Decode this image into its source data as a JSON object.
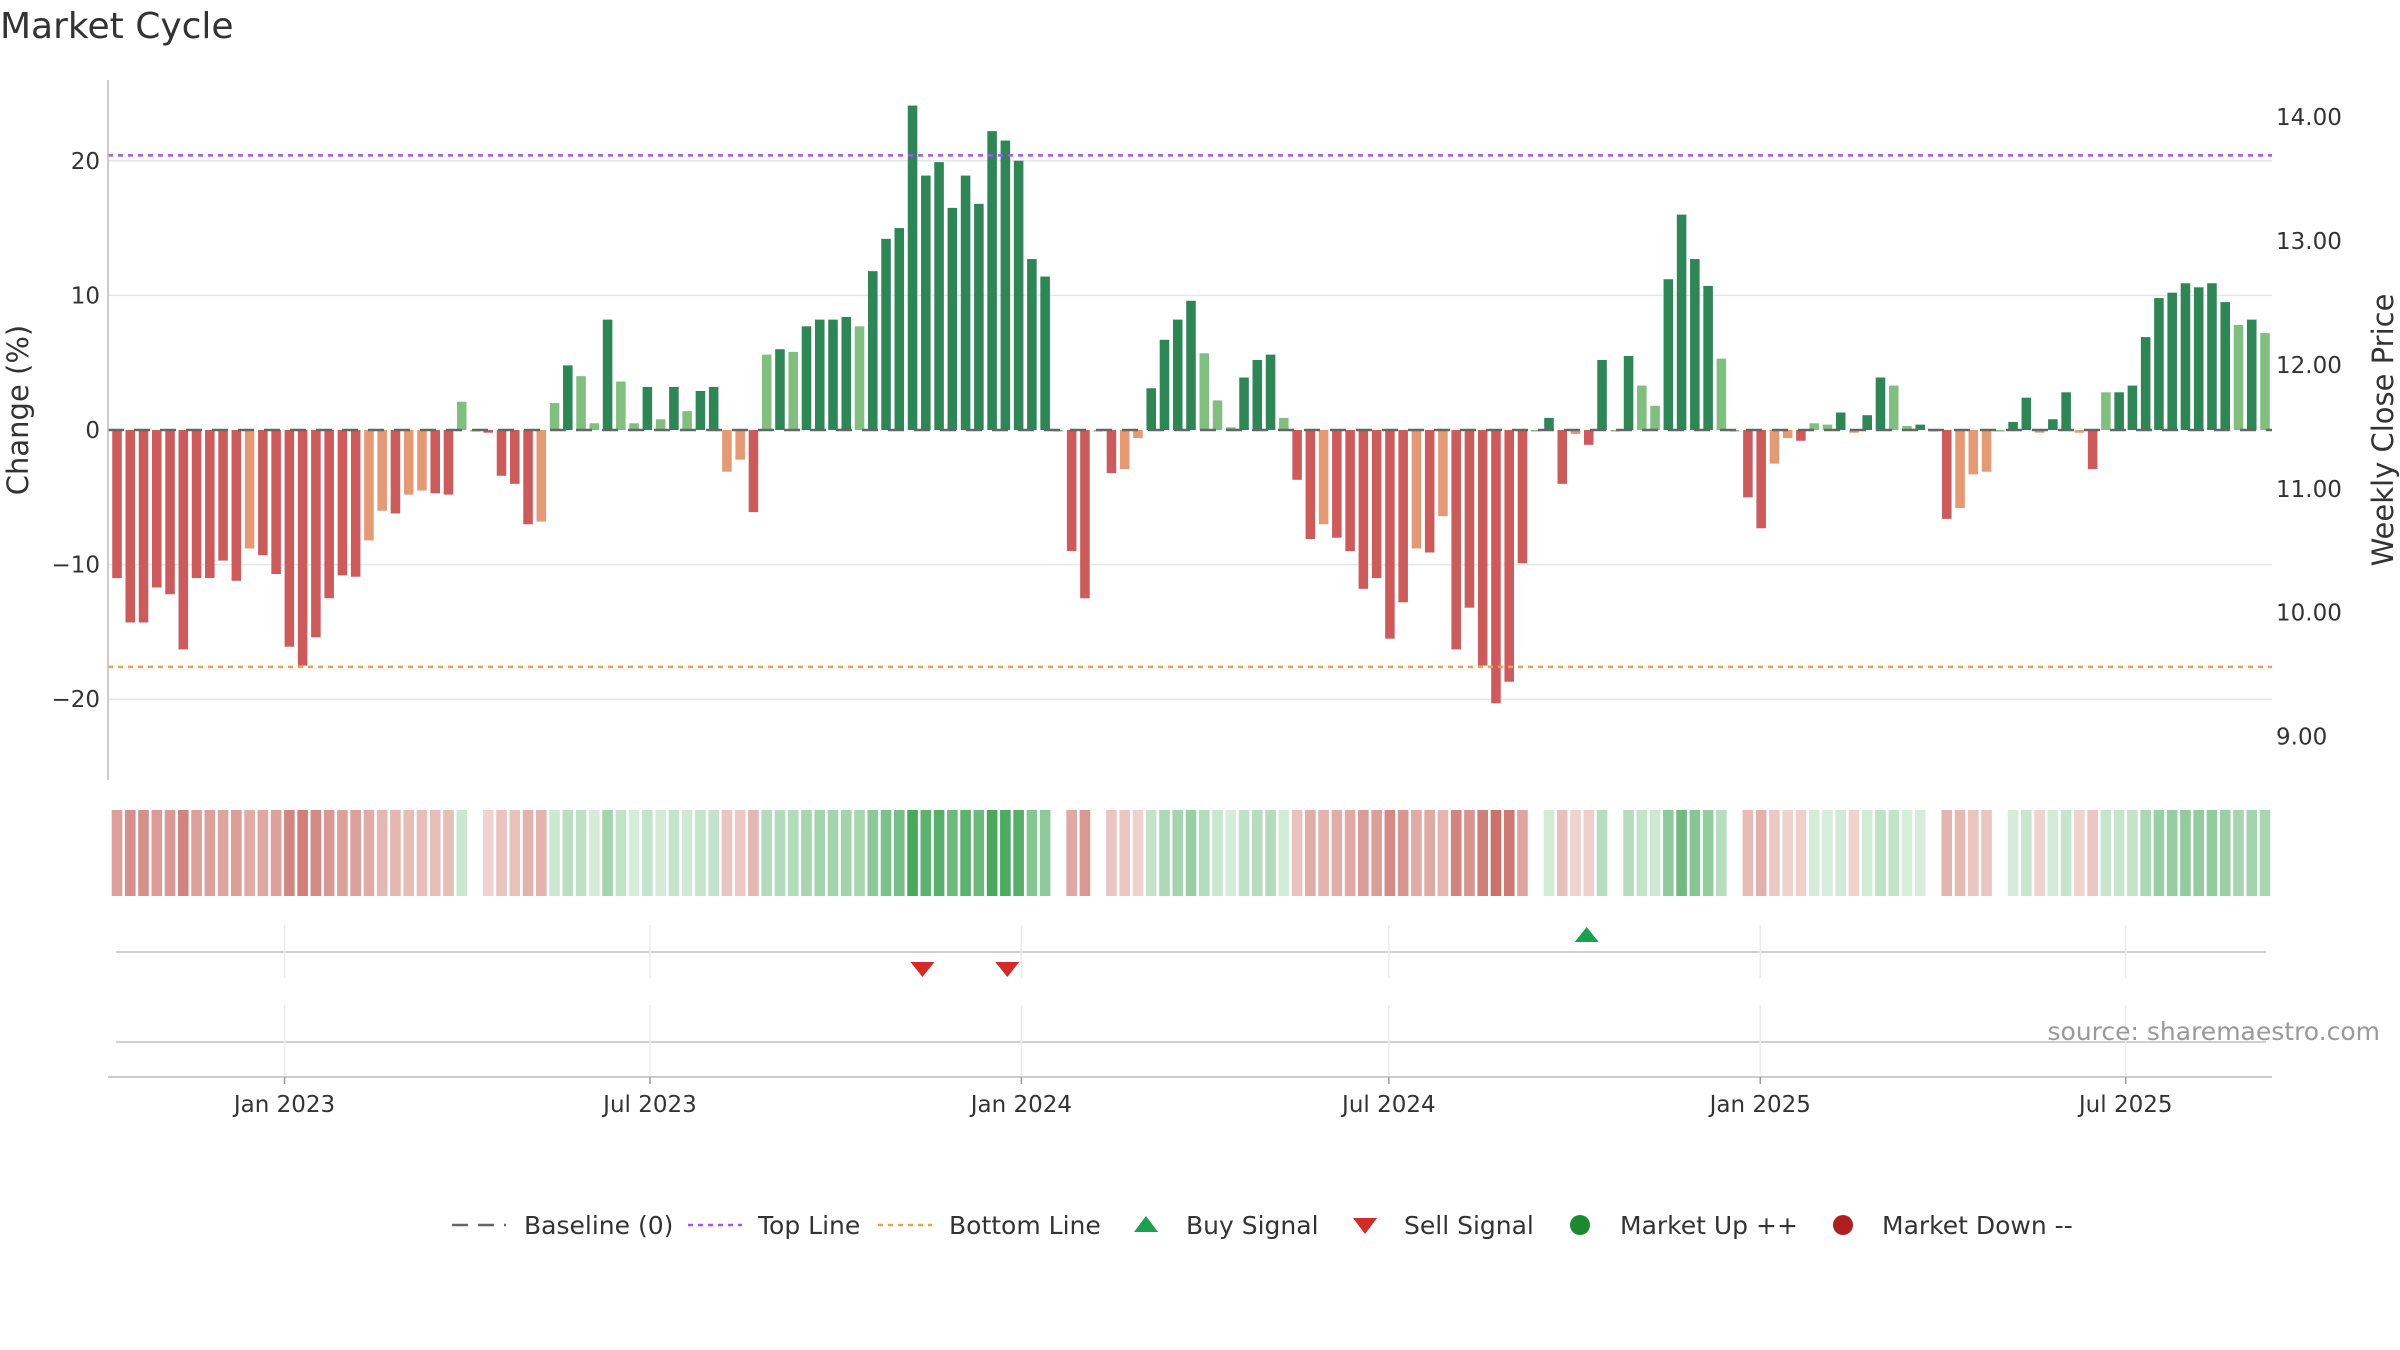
{
  "chart_data": {
    "type": "bar",
    "title": "Market Cycle",
    "ylabel": "Change (%)",
    "y2label": "Weekly Close Price",
    "ylim": [
      -26,
      26
    ],
    "y2lim": [
      8.65,
      14.3
    ],
    "yticks": [
      20,
      10,
      0,
      -10,
      -20
    ],
    "ytick_labels": [
      "20",
      "10",
      "0",
      "−10",
      "−20"
    ],
    "y2ticks": [
      14,
      13,
      12,
      11,
      10,
      9
    ],
    "y2tick_labels": [
      "14.00",
      "13.00",
      "12.00",
      "11.00",
      "10.00",
      "9.00"
    ],
    "x_start": "2022-10-10",
    "x_end": "2025-09-08",
    "bar_interval_days": 7,
    "xticks": [
      {
        "date": "2023-01-01",
        "label": "Jan 2023"
      },
      {
        "date": "2023-07-01",
        "label": "Jul 2023"
      },
      {
        "date": "2024-01-01",
        "label": "Jan 2024"
      },
      {
        "date": "2024-07-01",
        "label": "Jul 2024"
      },
      {
        "date": "2025-01-01",
        "label": "Jan 2025"
      },
      {
        "date": "2025-07-01",
        "label": "Jul 2025"
      }
    ],
    "top_line": 20.4,
    "bottom_line": -17.6,
    "baseline": 0,
    "grid": true,
    "values": [
      -11,
      -14.3,
      -14.3,
      -11.7,
      -12.2,
      -16.3,
      -11,
      -11,
      -9.7,
      -11.2,
      -8.8,
      -9.3,
      -10.7,
      -16.1,
      -17.5,
      -15.4,
      -12.5,
      -10.8,
      -10.9,
      -8.2,
      -6,
      -6.2,
      -4.8,
      -4.5,
      -4.7,
      -4.8,
      2.1,
      0,
      -0.2,
      -3.4,
      -4,
      -7,
      -6.8,
      2,
      4.8,
      4,
      0.5,
      8.2,
      3.6,
      0.5,
      3.2,
      0.8,
      3.2,
      1.4,
      2.9,
      3.2,
      -3.1,
      -2.2,
      -6.1,
      5.6,
      6,
      5.8,
      7.7,
      8.2,
      8.2,
      8.4,
      7.7,
      11.8,
      14.2,
      15,
      24.1,
      18.9,
      19.9,
      16.5,
      18.9,
      16.8,
      22.2,
      21.5,
      20,
      12.7,
      11.4,
      0,
      -9,
      -12.5,
      0,
      -3.2,
      -2.9,
      -0.6,
      3.1,
      6.7,
      8.2,
      9.6,
      5.7,
      2.2,
      0.2,
      3.9,
      5.2,
      5.6,
      0.9,
      -3.7,
      -8.1,
      -7,
      -8,
      -9,
      -11.8,
      -11,
      -15.5,
      -12.8,
      -8.8,
      -9.1,
      -6.4,
      -16.3,
      -13.2,
      -17.5,
      -20.3,
      -18.7,
      -9.9,
      0,
      0.9,
      -4,
      -0.3,
      -1.1,
      5.2,
      0,
      5.5,
      3.3,
      1.8,
      11.2,
      16,
      12.7,
      10.7,
      5.3,
      0,
      -5,
      -7.3,
      -2.5,
      -0.6,
      -0.8,
      0.5,
      0.4,
      1.3,
      -0.2,
      1.1,
      3.9,
      3.3,
      0.3,
      0.4,
      0,
      -6.6,
      -5.8,
      -3.3,
      -3.1,
      0,
      0.6,
      2.4,
      -0.2,
      0.8,
      2.8,
      -0.2,
      -2.9,
      2.8,
      2.8,
      3.3,
      6.9,
      9.8,
      10.2,
      10.9,
      10.6,
      10.9,
      9.5,
      7.8,
      8.2,
      7.2
    ],
    "colors": {
      "strong_up": "#2e8555",
      "mild_up": "#80bf80",
      "strong_down": "#cc5c5c",
      "mild_down": "#e59a76",
      "top_line": "#a855f7",
      "bottom_line": "#f0a050",
      "buy": "#1aa051",
      "sell": "#d42a2a",
      "market_up": "#1b8a2e",
      "market_down": "#b01f1f",
      "baseline": "#666666"
    },
    "buy_signals": [
      "2024-10-07"
    ],
    "sell_signals": [
      "2023-11-13",
      "2023-12-25"
    ],
    "legend_position": "bottom",
    "legend": [
      {
        "label": "Baseline (0)",
        "marker": "dash-line"
      },
      {
        "label": "Top Line",
        "marker": "dot-line-purple"
      },
      {
        "label": "Bottom Line",
        "marker": "dot-line-orange"
      },
      {
        "label": "Buy Signal",
        "marker": "triangle-up"
      },
      {
        "label": "Sell Signal",
        "marker": "triangle-down"
      },
      {
        "label": "Market Up ++",
        "marker": "circle-green"
      },
      {
        "label": "Market Down --",
        "marker": "circle-red"
      }
    ],
    "source": "source: sharemaestro.com"
  }
}
